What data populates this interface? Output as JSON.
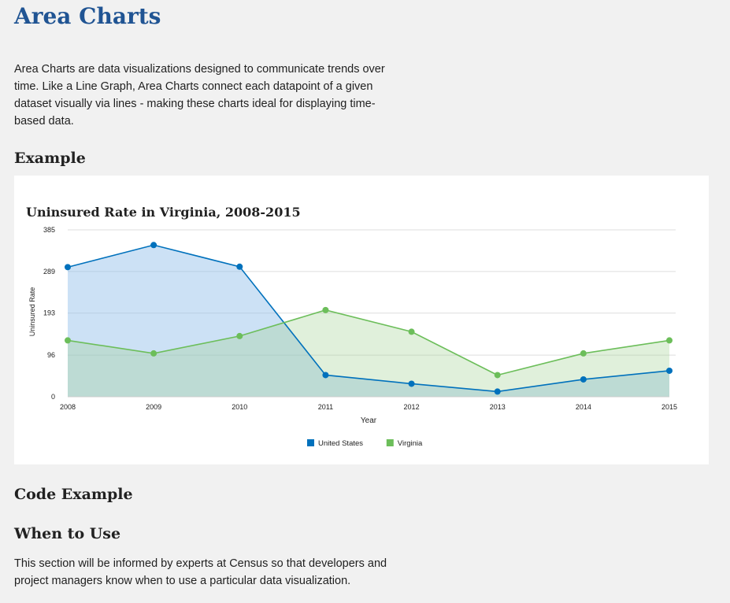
{
  "page": {
    "title": "Area Charts",
    "intro": "Area Charts are data visualizations designed to communicate trends over time. Like a Line Graph, Area Charts connect each datapoint of a given dataset visually via lines - making these charts ideal for displaying time-based data.",
    "example_heading": "Example",
    "code_heading": "Code Example",
    "when_heading": "When to Use",
    "when_text": "This section will be informed by experts at Census so that developers and project managers know when to use a particular data visualization."
  },
  "colors": {
    "title": "#205493",
    "us_line": "#0071bc",
    "us_fill": "#c7def3",
    "va_line": "#6cbe5a",
    "va_fill": "#e0f0da",
    "overlap_fill": "#b7dcd3",
    "grid": "#dddddd"
  },
  "chart_data": {
    "type": "area",
    "title": "Uninsured Rate in Virginia, 2008-2015",
    "xlabel": "Year",
    "ylabel": "Uninsured Rate",
    "x": [
      "2008",
      "2009",
      "2010",
      "2011",
      "2012",
      "2013",
      "2014",
      "2015"
    ],
    "yticks": [
      "0",
      "96",
      "193",
      "289",
      "385"
    ],
    "ylim": [
      0,
      385
    ],
    "grid": true,
    "legend_position": "bottom",
    "series": [
      {
        "name": "United States",
        "values": [
          299,
          350,
          300,
          50,
          30,
          12,
          40,
          60
        ]
      },
      {
        "name": "Virginia",
        "values": [
          130,
          100,
          140,
          200,
          150,
          50,
          100,
          130
        ]
      }
    ]
  }
}
